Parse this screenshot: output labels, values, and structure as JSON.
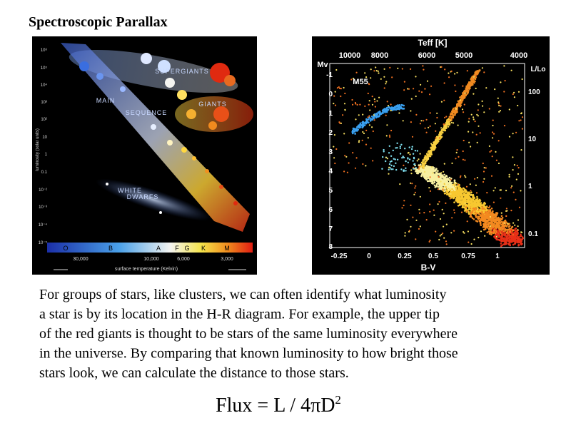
{
  "title": "Spectroscopic Parallax",
  "figure_left": {
    "regions": [
      "SUPERGIANTS",
      "GIANTS",
      "MAIN",
      "SEQUENCE",
      "WHITE",
      "DWARFS"
    ],
    "spectral_classes": [
      "O",
      "B",
      "A",
      "F",
      "G",
      "K",
      "M"
    ],
    "temperatures": [
      "30,000",
      "10,000",
      "6,000",
      "3,000"
    ],
    "x_label": "surface temperature (Kelvin)",
    "y_label": "luminosity (solar units)",
    "y_ticks": [
      "10⁶",
      "10⁵",
      "10⁴",
      "10³",
      "10²",
      "10",
      "1",
      "0.1",
      "10⁻²",
      "10⁻³",
      "10⁻⁴",
      "10⁻⁵"
    ]
  },
  "figure_right": {
    "cluster": "M55",
    "top_label": "Teff [K]",
    "top_ticks": [
      "10000",
      "8000",
      "6000",
      "5000",
      "4000"
    ],
    "left_label": "Mv",
    "left_ticks": [
      "-1",
      "0",
      "1",
      "2",
      "3",
      "4",
      "5",
      "6",
      "7",
      "8"
    ],
    "right_label": "L/Lo",
    "right_ticks": [
      "100",
      "10",
      "1",
      "0.1"
    ],
    "bottom_ticks": [
      "-0.25",
      "0",
      "0.25",
      "0.5",
      "0.75",
      "1"
    ],
    "bottom_label": "B-V"
  },
  "body": [
    "For groups of stars, like clusters, we can often identify what luminosity",
    "a star is by its location in the H-R diagram.  For example, the upper tip",
    "of the red giants is thought to be stars of the same luminosity everywhere",
    "in the universe.  By comparing that known luminosity to how bright those",
    "stars look, we can calculate the distance to those stars."
  ],
  "formula": {
    "text": "Flux = L / 4πD",
    "superscript": "2"
  }
}
